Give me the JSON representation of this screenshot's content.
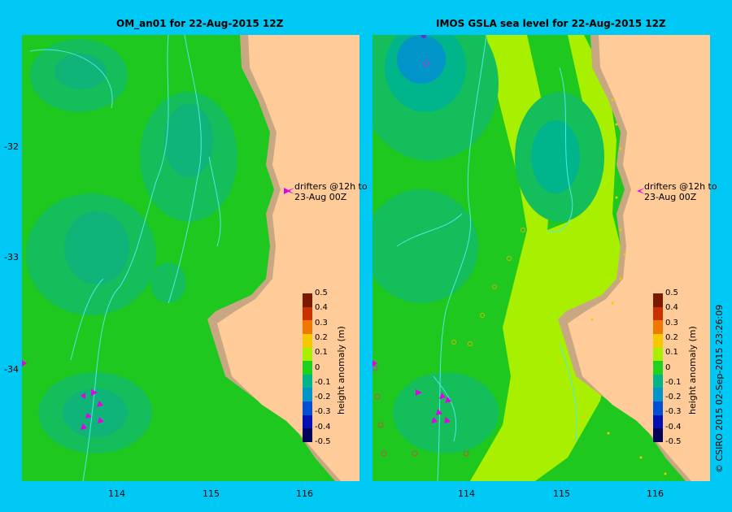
{
  "panels": [
    {
      "title": "OM_an01  for 22-Aug-2015 12Z"
    },
    {
      "title": "IMOS  GSLA sea level   for 22-Aug-2015 12Z"
    }
  ],
  "lat_ticks": [
    "-32",
    "-33",
    "-34"
  ],
  "lon_ticks": [
    "114",
    "115",
    "116"
  ],
  "drifters_label": [
    "drifters @12h to",
    "23-Aug 00Z"
  ],
  "colorbar": {
    "label": "height anomaly (m)",
    "ticks": [
      "0.5",
      "0.4",
      "0.3",
      "0.2",
      "0.1",
      "0",
      "-0.1",
      "-0.2",
      "-0.3",
      "-0.4",
      "-0.5"
    ],
    "colors": [
      "#7a1a00",
      "#c83200",
      "#f07800",
      "#f5c800",
      "#a8f000",
      "#1ed21e",
      "#00b48c",
      "#0094c8",
      "#0050d2",
      "#0010b4",
      "#00005a"
    ]
  },
  "copyright": "© CSIRO 2015    02-Sep-2015 23:26:09",
  "colors": {
    "background": "#00c8f5",
    "land": "#ffcc99",
    "coast": "#c8a882",
    "contour": "#50e8e8",
    "drifter": "#e600e6"
  }
}
